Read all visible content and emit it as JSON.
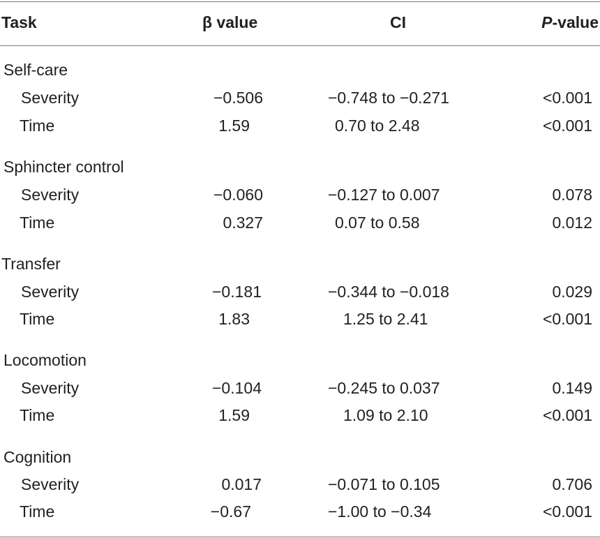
{
  "header": {
    "task": "Task",
    "beta": "β value",
    "ci": "CI",
    "p_italic": "P",
    "p_rest": "-value"
  },
  "groups": [
    {
      "label": "Self-care",
      "rows": [
        {
          "label": "Severity",
          "beta": "−0.506",
          "ci": "−0.748 to −0.271",
          "p": "<0.001"
        },
        {
          "label": "Time",
          "beta": "1.59",
          "ci": "0.70 to 2.48",
          "p": "<0.001"
        }
      ]
    },
    {
      "label": "Sphincter control",
      "rows": [
        {
          "label": "Severity",
          "beta": "−0.060",
          "ci": "−0.127 to 0.007",
          "p": "0.078"
        },
        {
          "label": "Time",
          "beta": "0.327",
          "ci": "0.07 to 0.58",
          "p": "0.012"
        }
      ]
    },
    {
      "label": "Transfer",
      "rows": [
        {
          "label": "Severity",
          "beta": "−0.181",
          "ci": "−0.344 to −0.018",
          "p": "0.029"
        },
        {
          "label": "Time",
          "beta": "1.83",
          "ci": "1.25 to 2.41",
          "p": "<0.001"
        }
      ]
    },
    {
      "label": "Locomotion",
      "rows": [
        {
          "label": "Severity",
          "beta": "−0.104",
          "ci": "−0.245 to 0.037",
          "p": "0.149"
        },
        {
          "label": "Time",
          "beta": "1.59",
          "ci": "1.09 to 2.10",
          "p": "<0.001"
        }
      ]
    },
    {
      "label": "Cognition",
      "rows": [
        {
          "label": "Severity",
          "beta": "0.017",
          "ci": "−0.071 to 0.105",
          "p": "0.706"
        },
        {
          "label": "Time",
          "beta": "−0.67",
          "ci": "−1.00 to −0.34",
          "p": "<0.001"
        }
      ]
    }
  ]
}
